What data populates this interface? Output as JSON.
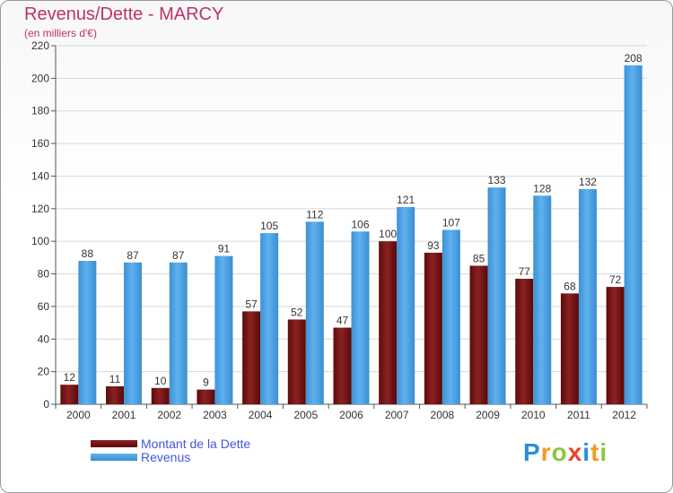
{
  "title": "Revenus/Dette - MARCY",
  "subtitle": "(en milliers d'€)",
  "logo_letters": [
    "P",
    "r",
    "o",
    "x",
    "i",
    "t",
    "i"
  ],
  "logo_colors": [
    "#2a8fd6",
    "#f39a1e",
    "#8cc63f",
    "#e8432e",
    "#2a8fd6",
    "#f39a1e",
    "#8cc63f"
  ],
  "chart_data": {
    "type": "bar",
    "title": "Revenus/Dette - MARCY",
    "ylabel": "(en milliers d'€)",
    "xlabel": "",
    "ylim": [
      0,
      220
    ],
    "yticks": [
      0,
      20,
      40,
      60,
      80,
      100,
      120,
      140,
      160,
      180,
      200,
      220
    ],
    "grid": true,
    "legend_position": "bottom-left",
    "categories": [
      "2000",
      "2001",
      "2002",
      "2003",
      "2004",
      "2005",
      "2006",
      "2007",
      "2008",
      "2009",
      "2010",
      "2011",
      "2012"
    ],
    "series": [
      {
        "name": "Montant de la Dette",
        "color": "#7a1414",
        "values": [
          12,
          11,
          10,
          9,
          57,
          52,
          47,
          100,
          93,
          85,
          77,
          68,
          72
        ]
      },
      {
        "name": "Revenus",
        "color": "#4da3e3",
        "values": [
          88,
          87,
          87,
          91,
          105,
          112,
          106,
          121,
          107,
          133,
          128,
          132,
          208
        ]
      }
    ]
  }
}
